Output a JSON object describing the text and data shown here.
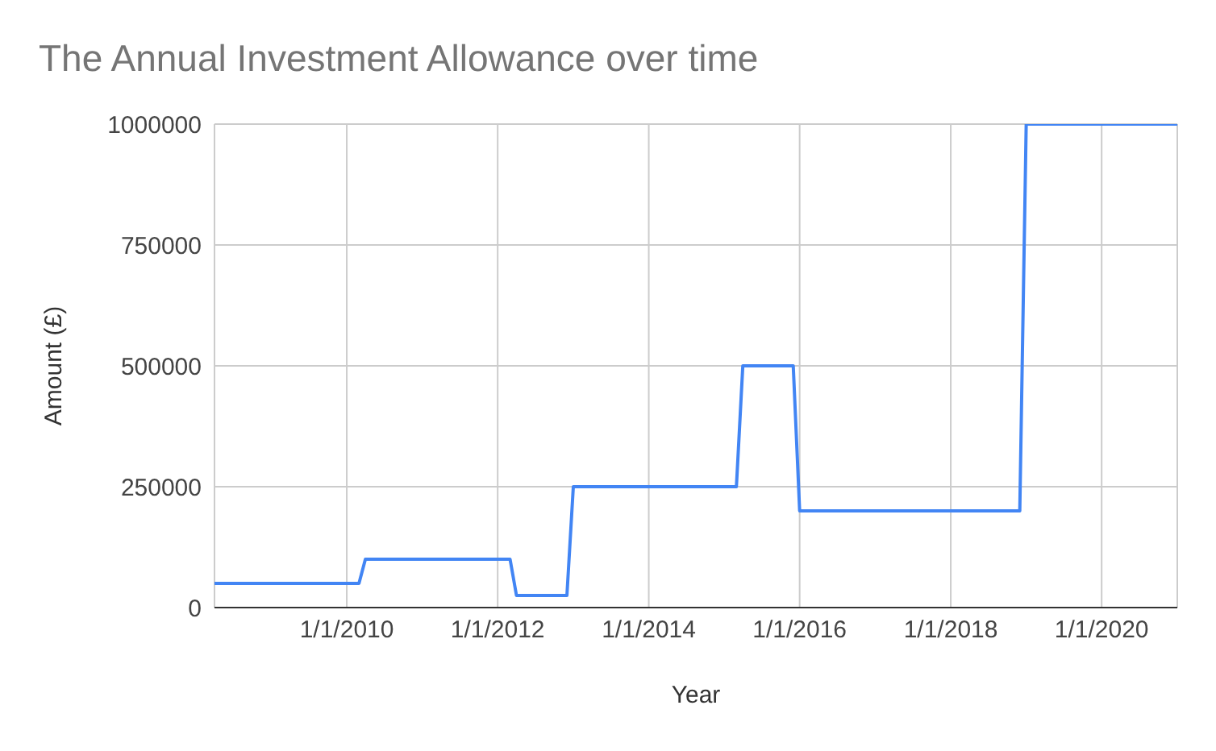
{
  "chart_data": {
    "type": "line",
    "title": "The Annual Investment Allowance over time",
    "xlabel": "Year",
    "ylabel": "Amount (£)",
    "x": [
      "2008-04-01",
      "2010-03-01",
      "2010-04-01",
      "2012-03-01",
      "2012-04-01",
      "2012-12-01",
      "2013-01-01",
      "2015-03-01",
      "2015-04-01",
      "2015-12-01",
      "2016-01-01",
      "2018-12-01",
      "2019-01-01",
      "2021-01-01"
    ],
    "values": [
      50000,
      50000,
      100000,
      100000,
      25000,
      25000,
      250000,
      250000,
      500000,
      500000,
      200000,
      200000,
      1000000,
      1000000
    ],
    "color": "#4285f4",
    "xlim": [
      "2008-04-01",
      "2021-01-01"
    ],
    "xticks": [
      {
        "value": "2010-01-01",
        "label": "1/1/2010"
      },
      {
        "value": "2012-01-01",
        "label": "1/1/2012"
      },
      {
        "value": "2014-01-01",
        "label": "1/1/2014"
      },
      {
        "value": "2016-01-01",
        "label": "1/1/2016"
      },
      {
        "value": "2018-01-01",
        "label": "1/1/2018"
      },
      {
        "value": "2020-01-01",
        "label": "1/1/2020"
      }
    ],
    "ylim": [
      0,
      1000000
    ],
    "yticks": [
      0,
      250000,
      500000,
      750000,
      1000000
    ],
    "grid": true
  }
}
